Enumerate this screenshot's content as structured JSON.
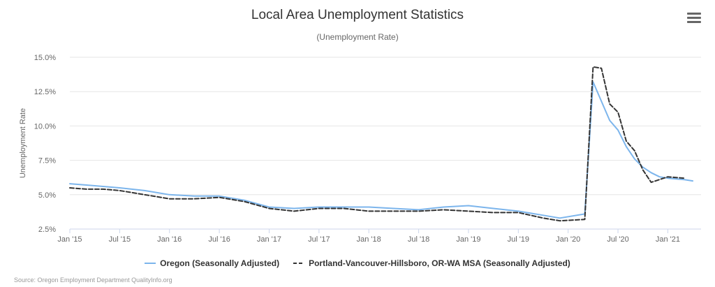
{
  "chart_data": {
    "type": "line",
    "title": "Local Area Unemployment Statistics",
    "subtitle": "(Unemployment Rate)",
    "ylabel": "Unemployment Rate",
    "xlabel": "",
    "ylim": [
      2.5,
      15.0
    ],
    "yticks": [
      2.5,
      5.0,
      7.5,
      10.0,
      12.5,
      15.0
    ],
    "ytick_labels": [
      "2.5%",
      "5.0%",
      "7.5%",
      "10.0%",
      "12.5%",
      "15.0%"
    ],
    "xlim": [
      "2015-01",
      "2021-05"
    ],
    "xticks": [
      "2015-01",
      "2015-07",
      "2016-01",
      "2016-07",
      "2017-01",
      "2017-07",
      "2018-01",
      "2018-07",
      "2019-01",
      "2019-07",
      "2020-01",
      "2020-07",
      "2021-01"
    ],
    "xtick_labels": [
      "Jan '15",
      "Jul '15",
      "Jan '16",
      "Jul '16",
      "Jan '17",
      "Jul '17",
      "Jan '18",
      "Jul '18",
      "Jan '19",
      "Jul '19",
      "Jan '20",
      "Jul '20",
      "Jan '21"
    ],
    "grid": true,
    "legend_position": "bottom-center",
    "series": [
      {
        "name": "Oregon (Seasonally Adjusted)",
        "color": "#7cb5ec",
        "dash": "solid",
        "x": [
          "2015-01",
          "2015-03",
          "2015-05",
          "2015-07",
          "2015-10",
          "2016-01",
          "2016-04",
          "2016-07",
          "2016-10",
          "2017-01",
          "2017-04",
          "2017-07",
          "2017-10",
          "2018-01",
          "2018-04",
          "2018-07",
          "2018-10",
          "2019-01",
          "2019-04",
          "2019-07",
          "2019-10",
          "2019-12",
          "2020-03",
          "2020-04",
          "2020-05",
          "2020-06",
          "2020-07",
          "2020-08",
          "2020-09",
          "2020-10",
          "2020-11",
          "2020-12",
          "2021-01",
          "2021-03",
          "2021-04"
        ],
        "y": [
          5.8,
          5.7,
          5.6,
          5.5,
          5.3,
          5.0,
          4.9,
          4.9,
          4.6,
          4.1,
          4.0,
          4.1,
          4.1,
          4.1,
          4.0,
          3.9,
          4.1,
          4.2,
          4.0,
          3.8,
          3.5,
          3.3,
          3.6,
          13.2,
          11.8,
          10.4,
          9.7,
          8.5,
          7.6,
          7.0,
          6.6,
          6.3,
          6.2,
          6.1,
          6.0
        ]
      },
      {
        "name": "Portland-Vancouver-Hillsboro, OR-WA MSA (Seasonally Adjusted)",
        "color": "#333333",
        "dash": "dashed",
        "x": [
          "2015-01",
          "2015-03",
          "2015-05",
          "2015-07",
          "2015-10",
          "2016-01",
          "2016-04",
          "2016-07",
          "2016-10",
          "2017-01",
          "2017-04",
          "2017-07",
          "2017-10",
          "2018-01",
          "2018-04",
          "2018-07",
          "2018-10",
          "2019-01",
          "2019-04",
          "2019-07",
          "2019-10",
          "2019-12",
          "2020-03",
          "2020-04",
          "2020-05",
          "2020-06",
          "2020-07",
          "2020-08",
          "2020-09",
          "2020-10",
          "2020-11",
          "2020-12",
          "2021-01",
          "2021-03"
        ],
        "y": [
          5.5,
          5.4,
          5.4,
          5.3,
          5.0,
          4.7,
          4.7,
          4.8,
          4.5,
          4.0,
          3.8,
          4.0,
          4.0,
          3.8,
          3.8,
          3.8,
          3.9,
          3.8,
          3.7,
          3.7,
          3.3,
          3.1,
          3.2,
          14.3,
          14.2,
          11.6,
          11.0,
          8.9,
          8.2,
          6.8,
          5.9,
          6.1,
          6.3,
          6.2
        ]
      }
    ],
    "source": "Source: Oregon Employment Department QualityInfo.org"
  },
  "menu_icon": "hamburger-menu-icon"
}
